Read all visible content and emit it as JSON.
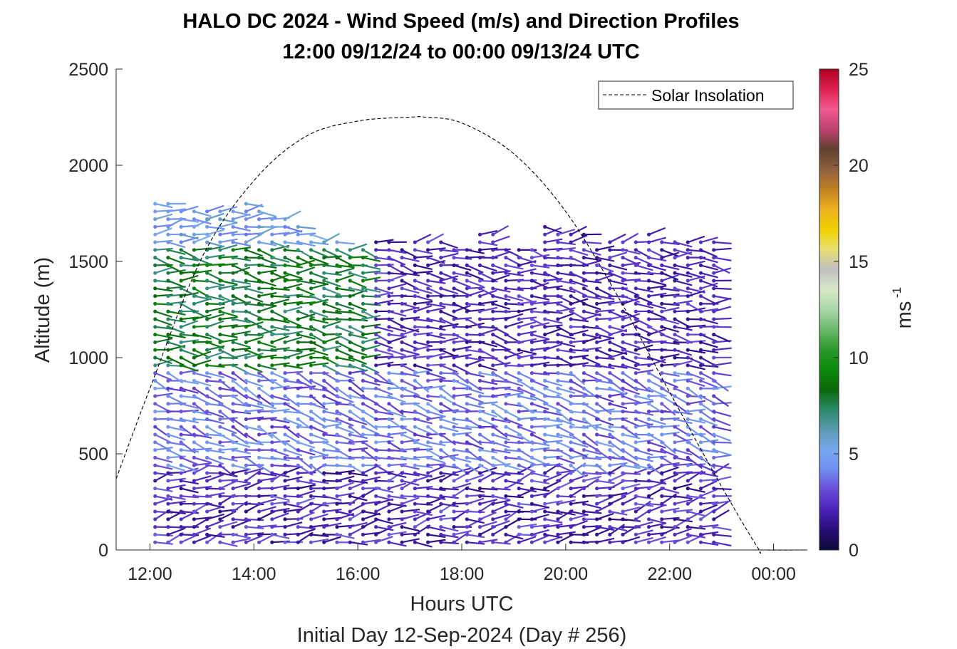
{
  "chart_data": {
    "type": "wind_barb_profile",
    "title": "HALO DC 2024 - Wind Speed (m/s) and Direction Profiles",
    "subtitle": "12:00 09/12/24 to 00:00 09/13/24  UTC",
    "xlabel": "Hours UTC",
    "xlabel2": "Initial Day 12-Sep-2024 (Day # 256)",
    "ylabel": "Altitude (m)",
    "xlim_hours": [
      11.35,
      24.65
    ],
    "ylim": [
      0,
      2500
    ],
    "x_tick_values": [
      12,
      14,
      16,
      18,
      20,
      22,
      24
    ],
    "x_tick_labels": [
      "12:00",
      "14:00",
      "16:00",
      "18:00",
      "20:00",
      "22:00",
      "00:00"
    ],
    "y_tick_values": [
      0,
      500,
      1000,
      1500,
      2000,
      2500
    ],
    "y_tick_labels": [
      "0",
      "500",
      "1000",
      "1500",
      "2000",
      "2500"
    ],
    "colorbar": {
      "label": "ms",
      "label_exponent": "-1",
      "range": [
        0,
        25
      ],
      "tick_values": [
        0,
        5,
        10,
        15,
        20,
        25
      ],
      "tick_labels": [
        "0",
        "5",
        "10",
        "15",
        "20",
        "25"
      ],
      "colors": [
        "#0a0a35",
        "#2a0c7a",
        "#4a22b8",
        "#6a4ad8",
        "#6e8cf0",
        "#78a8f0",
        "#5a9ab0",
        "#2a8a6a",
        "#0a6a0a",
        "#0a8a0a",
        "#2a9a2a",
        "#6ab86a",
        "#a8d8a8",
        "#d8e8c8",
        "#c0c0c0",
        "#e8e070",
        "#f0d000",
        "#f0b020",
        "#c08020",
        "#906040",
        "#604030",
        "#c04070",
        "#f05a90",
        "#e02050",
        "#b00020"
      ]
    },
    "legend": {
      "entries": [
        "Solar Insolation"
      ],
      "placement": "top-right"
    },
    "grid": false,
    "profile_times_hours": [
      12.1,
      12.35,
      12.6,
      12.85,
      13.1,
      13.35,
      13.6,
      13.85,
      14.1,
      14.35,
      14.6,
      14.85,
      15.1,
      15.35,
      15.6,
      15.85,
      16.1,
      16.35,
      16.6,
      16.85,
      17.1,
      17.35,
      17.6,
      17.85,
      18.1,
      18.35,
      18.6,
      18.85,
      19.1,
      19.35,
      19.6,
      19.85,
      20.1,
      20.35,
      20.6,
      20.85,
      21.1,
      21.35,
      21.6,
      21.85,
      22.1,
      22.35,
      22.6,
      22.85
    ],
    "altitude_levels_m": [
      40,
      80,
      120,
      160,
      200,
      240,
      280,
      320,
      360,
      400,
      440,
      480,
      520,
      560,
      600,
      640,
      680,
      720,
      760,
      800,
      840,
      880,
      920,
      960,
      1000,
      1040,
      1080,
      1120,
      1160,
      1200,
      1240,
      1280,
      1320,
      1360,
      1400,
      1440,
      1480,
      1520,
      1560,
      1600,
      1640,
      1680,
      1720,
      1760,
      1800
    ],
    "max_height_m": [
      1830,
      1830,
      1790,
      1780,
      1760,
      1760,
      1780,
      1800,
      1760,
      1750,
      1730,
      1700,
      1650,
      1620,
      1600,
      1580,
      1560,
      1600,
      1600,
      1580,
      1600,
      1600,
      1610,
      1590,
      1580,
      1660,
      1640,
      1580,
      1590,
      1570,
      1700,
      1670,
      1660,
      1640,
      1580,
      1620,
      1620,
      1610,
      1640,
      1620,
      1620,
      1620,
      1620,
      1610
    ],
    "layers": [
      {
        "base_m": 0,
        "top_m": 440,
        "speed_ms": 2.3,
        "direction_deg": 260
      },
      {
        "base_m": 440,
        "top_m": 930,
        "speed_ms": 3.8,
        "direction_deg": 285
      },
      {
        "base_m": 930,
        "top_m": 1600,
        "speed_ms": 8.0,
        "direction_deg": 275
      },
      {
        "base_m": 1600,
        "top_m": 1900,
        "speed_ms": 5.0,
        "direction_deg": 265
      }
    ],
    "solar_insolation_curve": {
      "x_hours": [
        11.35,
        12.0,
        13.0,
        14.0,
        15.0,
        16.0,
        17.0,
        17.3,
        18.0,
        19.0,
        20.0,
        21.0,
        22.0,
        23.0,
        23.7,
        23.8,
        24.65
      ],
      "y_altitude_m": [
        370,
        840,
        1520,
        1920,
        2150,
        2230,
        2250,
        2250,
        2220,
        2060,
        1760,
        1320,
        820,
        330,
        10,
        0,
        0
      ]
    }
  }
}
